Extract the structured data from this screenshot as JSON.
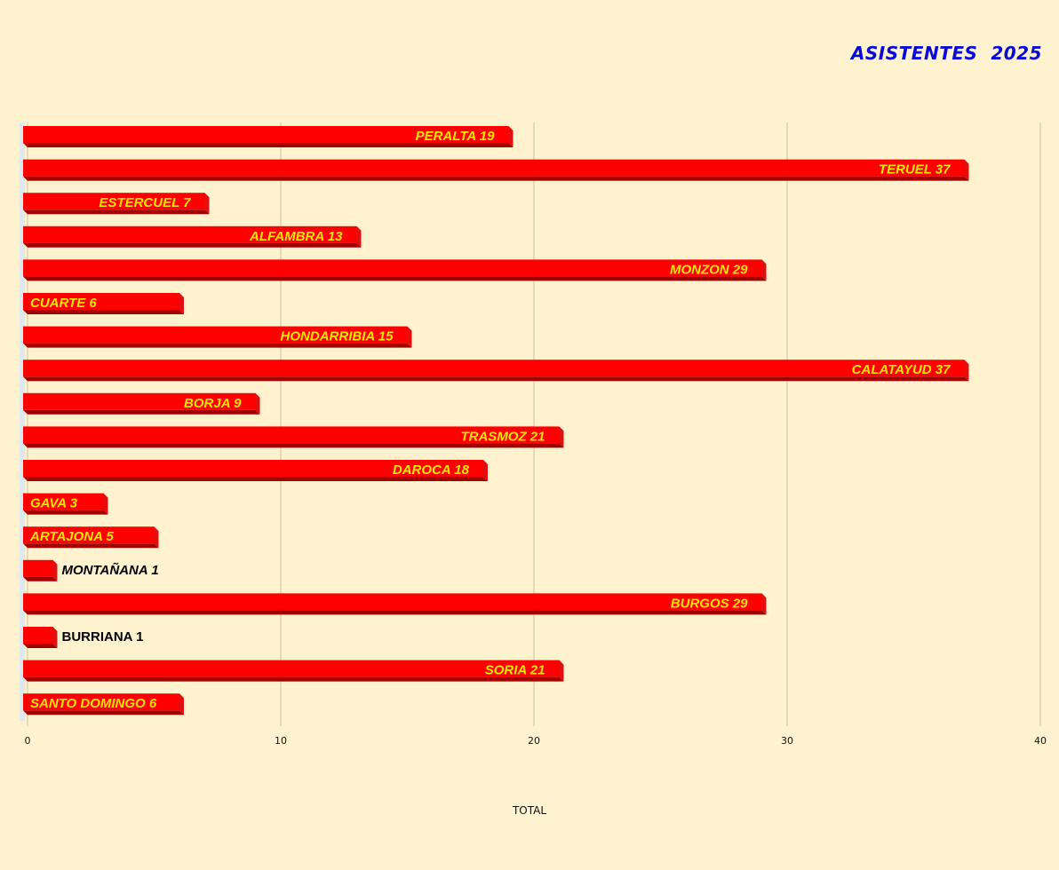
{
  "chart_data": {
    "type": "bar",
    "orientation": "horizontal",
    "title": "ASISTENTES  2025",
    "xlabel": "TOTAL",
    "ylabel": "",
    "xlim": [
      0,
      40
    ],
    "xticks": [
      "0",
      "10",
      "20",
      "30",
      "40"
    ],
    "grid": true,
    "legend": "none",
    "categories": [
      "PERALTA",
      "TERUEL",
      "ESTERCUEL",
      "ALFAMBRA",
      "MONZON",
      "CUARTE",
      "HONDARRIBIA",
      "CALATAYUD",
      "BORJA",
      "TRASMOZ",
      "DAROCA",
      "GAVA",
      "ARTAJONA",
      "MONTAÑANA",
      "BURGOS",
      "BURRIANA",
      "SORIA",
      "SANTO DOMINGO"
    ],
    "values": [
      19,
      37,
      7,
      13,
      29,
      6,
      15,
      37,
      9,
      21,
      18,
      3,
      5,
      1,
      29,
      1,
      21,
      6
    ],
    "labels": [
      "PERALTA 19",
      "TERUEL    37",
      "ESTERCUEL 7",
      "ALFAMBRA 13",
      "MONZON 29",
      "CUARTE 6",
      "HONDARRIBIA 15",
      "CALATAYUD 37",
      "BORJA 9",
      "TRASMOZ 21",
      "DAROCA 18",
      "GAVA 3",
      "ARTAJONA 5",
      "MONTAÑANA 1",
      "BURGOS 29",
      "BURRIANA 1",
      "SORIA 21",
      "SANTO DOMINGO 6"
    ],
    "label_colors": [
      "#ffe600",
      "#ffe600",
      "#ffe600",
      "#ffe600",
      "#ffe600",
      "#ffe600",
      "#ffe600",
      "#ffe600",
      "#ffe600",
      "#ffe600",
      "#ffe600",
      "#ffe600",
      "#ffe600",
      "#000000",
      "#ffe600",
      "#000000",
      "#ffe600",
      "#ffe600"
    ],
    "bar_color": "#ff0000",
    "background_color": "#fff2cf",
    "title_color": "#0a0ad8"
  }
}
